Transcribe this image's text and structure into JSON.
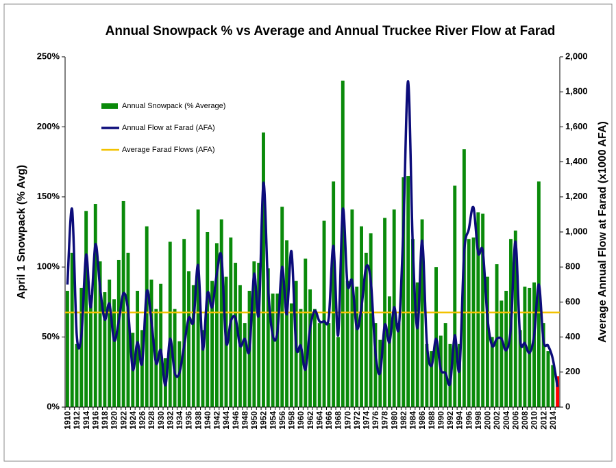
{
  "chart_data": {
    "type": "bar_line",
    "title": "Annual Snowpack % vs Average and Annual Truckee River Flow at Farad",
    "y_label": "April 1 Snowpack (% Avg)",
    "y2_label": "Average Annual Flow at Farad (x1000 AFA)",
    "categories": [
      "1910",
      null,
      "1912",
      null,
      "1914",
      null,
      "1916",
      null,
      "1918",
      null,
      "1920",
      null,
      "1922",
      null,
      "1924",
      null,
      "1926",
      null,
      "1928",
      null,
      "1930",
      null,
      "1932",
      null,
      "1934",
      null,
      "1936",
      null,
      "1938",
      null,
      "1940",
      null,
      "1942",
      null,
      "1944",
      null,
      "1946",
      null,
      "1948",
      null,
      "1950",
      null,
      "1952",
      null,
      "1954",
      null,
      "1956",
      null,
      "1958",
      null,
      "1960",
      null,
      "1962",
      null,
      "1964",
      null,
      "1966",
      null,
      "1968",
      null,
      "1970",
      null,
      "1972",
      null,
      "1974",
      null,
      "1976",
      null,
      "1978",
      null,
      "1980",
      null,
      "1982",
      null,
      "1984",
      null,
      "1986",
      null,
      "1988",
      null,
      "1990",
      null,
      "1992",
      null,
      "1994",
      null,
      "1996",
      null,
      "1998",
      null,
      "2000",
      null,
      "2002",
      null,
      "2004",
      null,
      "2006",
      null,
      "2008",
      null,
      "2010",
      null,
      "2012",
      null,
      "2014",
      null
    ],
    "series": [
      {
        "name": "Annual Snowpack (% Average)",
        "kind": "bar",
        "color": "#0a8a0a",
        "highlight": {
          "index": 105,
          "color": "#ff0000"
        },
        "values": [
          83,
          110,
          45,
          85,
          140,
          80,
          145,
          104,
          82,
          91,
          77,
          105,
          147,
          110,
          53,
          83,
          55,
          129,
          91,
          70,
          88,
          35,
          118,
          70,
          47,
          120,
          97,
          87,
          141,
          55,
          125,
          90,
          117,
          134,
          93,
          121,
          103,
          87,
          60,
          83,
          104,
          103,
          196,
          99,
          81,
          81,
          143,
          119,
          74,
          90,
          70,
          106,
          84,
          70,
          60,
          133,
          60,
          161,
          50,
          233,
          90,
          141,
          86,
          129,
          110,
          124,
          60,
          48,
          135,
          79,
          141,
          60,
          164,
          165,
          120,
          89,
          134,
          45,
          40,
          100,
          51,
          60,
          45,
          158,
          45,
          184,
          120,
          121,
          139,
          138,
          93,
          50,
          102,
          76,
          83,
          120,
          126,
          55,
          86,
          85,
          89,
          161,
          60,
          40,
          30,
          22
        ]
      },
      {
        "name": "Annual Flow at Farad (AFA)",
        "kind": "line",
        "axis": "y2",
        "color": "#0c0c7a",
        "values": [
          700,
          1130,
          410,
          410,
          870,
          570,
          930,
          680,
          500,
          590,
          380,
          490,
          650,
          550,
          215,
          370,
          250,
          660,
          490,
          250,
          325,
          125,
          390,
          195,
          195,
          350,
          510,
          490,
          810,
          330,
          650,
          570,
          760,
          860,
          370,
          490,
          510,
          350,
          390,
          325,
          760,
          530,
          1280,
          680,
          410,
          430,
          800,
          530,
          890,
          350,
          350,
          215,
          450,
          550,
          490,
          490,
          510,
          920,
          410,
          1130,
          700,
          720,
          450,
          570,
          800,
          720,
          310,
          195,
          470,
          370,
          570,
          450,
          1035,
          1860,
          920,
          450,
          950,
          370,
          235,
          390,
          215,
          195,
          135,
          410,
          215,
          880,
          1015,
          1140,
          880,
          890,
          510,
          350,
          390,
          390,
          325,
          450,
          945,
          390,
          365,
          310,
          410,
          700,
          380,
          350,
          275,
          115
        ]
      }
    ],
    "reference_lines": [
      {
        "name": "Average Farad Flows (AFA)",
        "axis": "y2",
        "value": 540,
        "color": "#f2c200"
      }
    ],
    "ylim": [
      0,
      250
    ],
    "yticks": [
      {
        "value": 0,
        "label": "0%"
      },
      {
        "value": 50,
        "label": "50%"
      },
      {
        "value": 100,
        "label": "100%"
      },
      {
        "value": 150,
        "label": "150%"
      },
      {
        "value": 200,
        "label": "200%"
      },
      {
        "value": 250,
        "label": "250%"
      }
    ],
    "y2lim": [
      0,
      2000
    ],
    "y2ticks": [
      0,
      200,
      400,
      600,
      800,
      {
        "value": 1000,
        "label": "1,000"
      },
      {
        "value": 1200,
        "label": "1,200"
      },
      {
        "value": 1400,
        "label": "1,400"
      },
      {
        "value": 1600,
        "label": "1,600"
      },
      {
        "value": 1800,
        "label": "1,800"
      },
      {
        "value": 2000,
        "label": "2,000"
      }
    ],
    "grid": false,
    "legend": "upper left"
  }
}
